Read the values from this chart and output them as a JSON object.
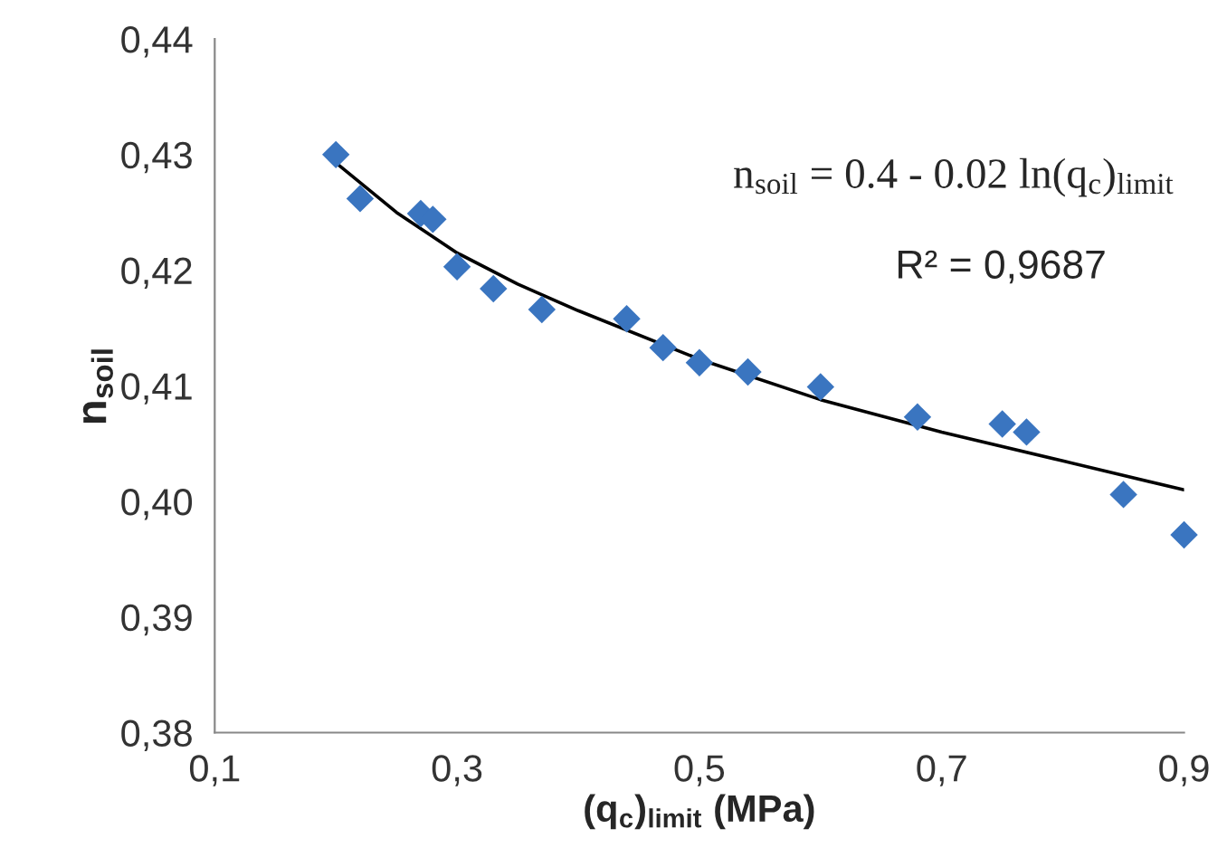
{
  "chart_data": {
    "type": "scatter",
    "xlabel": "(q$_{c}$)$_{limit}$ (MPa)",
    "ylabel": "n$_{soil}$",
    "annotations": [
      "n$_{soil}$ = 0.4 - 0.02 ln(q$_{c}$)$_{limit}$",
      "R² = 0,9687"
    ],
    "series": [
      {
        "color": "#3a75c0",
        "marker": "diamond",
        "x": [
          0.2,
          0.22,
          0.27,
          0.28,
          0.3,
          0.33,
          0.37,
          0.44,
          0.47,
          0.5,
          0.54,
          0.6,
          0.68,
          0.75,
          0.77,
          0.85,
          0.9
        ],
        "values": [
          0.43,
          0.4262,
          0.4249,
          0.4244,
          0.4203,
          0.4184,
          0.4166,
          0.4158,
          0.4133,
          0.412,
          0.4112,
          0.4099,
          0.4073,
          0.4067,
          0.406,
          0.4006,
          0.3971
        ]
      },
      {
        "type": "line",
        "color": "#000000",
        "marker": "none",
        "line_style": "solid",
        "x": [
          0.2,
          0.25,
          0.3,
          0.35,
          0.4,
          0.5,
          0.6,
          0.7,
          0.8,
          0.9
        ],
        "values": [
          0.4293,
          0.425,
          0.4215,
          0.4188,
          0.4165,
          0.4123,
          0.4088,
          0.406,
          0.4035,
          0.401
        ]
      }
    ],
    "xlim": [
      0.1,
      0.9
    ],
    "ylim": [
      0.38,
      0.44
    ],
    "xticks": [
      {
        "value": 0.1,
        "label": "0,1"
      },
      {
        "value": 0.3,
        "label": "0,3"
      },
      {
        "value": 0.5,
        "label": "0,5"
      },
      {
        "value": 0.7,
        "label": "0,7"
      },
      {
        "value": 0.9,
        "label": "0,9"
      }
    ],
    "yticks": [
      {
        "value": 0.38,
        "label": "0,38"
      },
      {
        "value": 0.39,
        "label": "0,39"
      },
      {
        "value": 0.4,
        "label": "0,40"
      },
      {
        "value": 0.41,
        "label": "0,41"
      },
      {
        "value": 0.42,
        "label": "0,42"
      },
      {
        "value": 0.43,
        "label": "0,43"
      },
      {
        "value": 0.44,
        "label": "0,44"
      }
    ],
    "grid": false,
    "legend": false
  }
}
